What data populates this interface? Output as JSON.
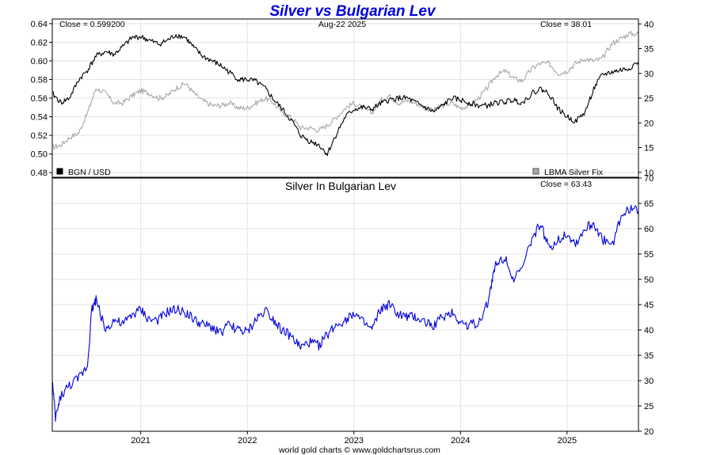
{
  "title": "Silver vs Bulgarian Lev",
  "footer": "world gold charts © www.goldchartsrus.com",
  "top_panel": {
    "close_left": "Close = 0.599200",
    "date": "Aug-22  2025",
    "close_right": "Close = 38.01",
    "legend_left": "BGN / USD",
    "legend_right": "LBMA Silver Fix"
  },
  "bottom_panel": {
    "title": "Silver In Bulgarian Lev",
    "close": "Close = 63.43"
  },
  "colors": {
    "bgn_usd": "#000000",
    "silver_usd": "#a8a8a8",
    "silver_bgn": "#0000dd",
    "title": "#0000dd"
  },
  "chart_data": [
    {
      "type": "line",
      "title": "Silver vs Bulgarian Lev",
      "x_ticks": [
        "2021",
        "2022",
        "2023",
        "2024",
        "2025"
      ],
      "y_left_ticks": [
        "0.64",
        "0.62",
        "0.60",
        "0.58",
        "0.56",
        "0.54",
        "0.52",
        "0.50",
        "0.48"
      ],
      "y_right_ticks": [
        "40",
        "35",
        "30",
        "25",
        "20",
        "15",
        "10"
      ],
      "ylim_left": [
        0.475,
        0.645
      ],
      "ylim_right": [
        9,
        41
      ],
      "xlim": [
        2020.17,
        2025.67
      ],
      "grid": true,
      "series": [
        {
          "name": "BGN / USD",
          "axis": "left",
          "x": [
            2020.17,
            2020.25,
            2020.33,
            2020.42,
            2020.5,
            2020.58,
            2020.67,
            2020.75,
            2020.83,
            2020.92,
            2021.0,
            2021.08,
            2021.17,
            2021.25,
            2021.33,
            2021.42,
            2021.5,
            2021.58,
            2021.67,
            2021.75,
            2021.83,
            2021.92,
            2022.0,
            2022.08,
            2022.17,
            2022.25,
            2022.33,
            2022.42,
            2022.5,
            2022.58,
            2022.67,
            2022.75,
            2022.83,
            2022.92,
            2023.0,
            2023.08,
            2023.17,
            2023.25,
            2023.33,
            2023.42,
            2023.5,
            2023.58,
            2023.67,
            2023.75,
            2023.83,
            2023.92,
            2024.0,
            2024.08,
            2024.17,
            2024.25,
            2024.33,
            2024.42,
            2024.5,
            2024.58,
            2024.67,
            2024.75,
            2024.83,
            2024.92,
            2025.0,
            2025.08,
            2025.17,
            2025.25,
            2025.33,
            2025.42,
            2025.5,
            2025.58,
            2025.67
          ],
          "values": [
            0.565,
            0.555,
            0.56,
            0.58,
            0.59,
            0.605,
            0.61,
            0.607,
            0.615,
            0.625,
            0.626,
            0.622,
            0.618,
            0.622,
            0.628,
            0.625,
            0.614,
            0.605,
            0.6,
            0.595,
            0.588,
            0.58,
            0.58,
            0.578,
            0.57,
            0.558,
            0.548,
            0.535,
            0.52,
            0.514,
            0.51,
            0.5,
            0.52,
            0.54,
            0.548,
            0.55,
            0.548,
            0.554,
            0.558,
            0.56,
            0.56,
            0.555,
            0.55,
            0.545,
            0.552,
            0.56,
            0.558,
            0.555,
            0.552,
            0.552,
            0.555,
            0.556,
            0.558,
            0.555,
            0.565,
            0.57,
            0.565,
            0.548,
            0.54,
            0.535,
            0.545,
            0.57,
            0.585,
            0.588,
            0.59,
            0.592,
            0.5992
          ]
        },
        {
          "name": "LBMA Silver Fix",
          "axis": "right",
          "x": [
            2020.17,
            2020.25,
            2020.33,
            2020.42,
            2020.5,
            2020.58,
            2020.67,
            2020.75,
            2020.83,
            2020.92,
            2021.0,
            2021.08,
            2021.17,
            2021.25,
            2021.33,
            2021.42,
            2021.5,
            2021.58,
            2021.67,
            2021.75,
            2021.83,
            2021.92,
            2022.0,
            2022.08,
            2022.17,
            2022.25,
            2022.33,
            2022.42,
            2022.5,
            2022.58,
            2022.67,
            2022.75,
            2022.83,
            2022.92,
            2023.0,
            2023.08,
            2023.17,
            2023.25,
            2023.33,
            2023.42,
            2023.5,
            2023.58,
            2023.67,
            2023.75,
            2023.83,
            2023.92,
            2024.0,
            2024.08,
            2024.17,
            2024.25,
            2024.33,
            2024.42,
            2024.5,
            2024.58,
            2024.67,
            2024.75,
            2024.83,
            2024.92,
            2025.0,
            2025.08,
            2025.17,
            2025.25,
            2025.33,
            2025.42,
            2025.5,
            2025.58,
            2025.67
          ],
          "values": [
            15.0,
            15.5,
            17.0,
            18.0,
            22.0,
            27.0,
            26.0,
            24.0,
            24.0,
            25.5,
            26.5,
            26.0,
            25.0,
            25.5,
            27.0,
            28.0,
            26.0,
            24.5,
            23.5,
            23.5,
            24.0,
            23.0,
            23.0,
            24.0,
            25.0,
            24.0,
            22.0,
            21.0,
            19.0,
            19.0,
            18.5,
            19.5,
            21.0,
            23.0,
            24.0,
            23.0,
            22.0,
            24.5,
            25.5,
            24.0,
            24.5,
            24.0,
            23.0,
            22.5,
            23.5,
            24.0,
            23.0,
            23.5,
            25.0,
            27.0,
            29.5,
            30.5,
            29.0,
            28.5,
            31.0,
            32.0,
            32.0,
            30.0,
            30.5,
            32.0,
            33.0,
            32.5,
            33.0,
            36.0,
            37.0,
            38.0,
            38.01
          ]
        }
      ]
    },
    {
      "type": "line",
      "title": "Silver In Bulgarian Lev",
      "x_ticks": [
        "2021",
        "2022",
        "2023",
        "2024",
        "2025"
      ],
      "y_ticks": [
        "70",
        "65",
        "60",
        "55",
        "50",
        "45",
        "40",
        "35",
        "30",
        "25",
        "20"
      ],
      "ylim": [
        20,
        70
      ],
      "xlim": [
        2020.17,
        2025.67
      ],
      "grid": true,
      "series": [
        {
          "name": "Silver In Bulgarian Lev",
          "x": [
            2020.17,
            2020.2,
            2020.25,
            2020.33,
            2020.42,
            2020.5,
            2020.54,
            2020.58,
            2020.67,
            2020.75,
            2020.83,
            2020.92,
            2021.0,
            2021.08,
            2021.17,
            2021.25,
            2021.33,
            2021.42,
            2021.5,
            2021.58,
            2021.67,
            2021.75,
            2021.83,
            2021.92,
            2022.0,
            2022.08,
            2022.17,
            2022.25,
            2022.33,
            2022.42,
            2022.5,
            2022.58,
            2022.67,
            2022.75,
            2022.83,
            2022.92,
            2023.0,
            2023.08,
            2023.17,
            2023.25,
            2023.33,
            2023.42,
            2023.5,
            2023.58,
            2023.67,
            2023.75,
            2023.83,
            2023.92,
            2024.0,
            2024.08,
            2024.17,
            2024.25,
            2024.3,
            2024.33,
            2024.42,
            2024.5,
            2024.58,
            2024.67,
            2024.75,
            2024.83,
            2024.92,
            2025.0,
            2025.08,
            2025.17,
            2025.25,
            2025.33,
            2025.42,
            2025.5,
            2025.58,
            2025.67
          ],
          "values": [
            30.0,
            22.5,
            27.0,
            29.0,
            30.5,
            33.0,
            44.0,
            46.0,
            40.0,
            42.0,
            41.0,
            43.0,
            44.0,
            42.0,
            42.0,
            43.5,
            44.0,
            43.5,
            42.0,
            41.0,
            40.5,
            39.5,
            41.0,
            40.0,
            39.5,
            42.0,
            44.0,
            42.0,
            40.0,
            38.5,
            36.5,
            37.5,
            37.0,
            39.0,
            41.0,
            42.0,
            43.5,
            41.5,
            40.0,
            44.0,
            45.0,
            43.0,
            42.5,
            42.5,
            41.5,
            41.0,
            42.5,
            43.5,
            41.5,
            41.0,
            41.5,
            45.0,
            50.0,
            53.0,
            54.5,
            50.0,
            52.0,
            58.0,
            61.0,
            56.0,
            58.0,
            59.0,
            57.0,
            60.0,
            61.0,
            58.0,
            56.5,
            62.0,
            64.0,
            63.43
          ]
        }
      ]
    }
  ]
}
